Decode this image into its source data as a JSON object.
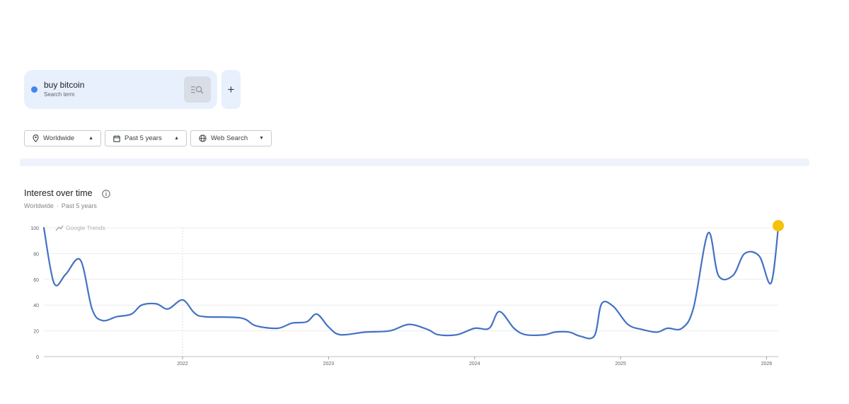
{
  "search_term": {
    "name": "buy bitcoin",
    "type_label": "Search term",
    "color": "#4285f4"
  },
  "add_button": {
    "label": "+"
  },
  "filters": {
    "location": "Worldwide",
    "time_range": "Past 5 years",
    "property": "Web Search"
  },
  "panel": {
    "title": "Interest over time",
    "sub_location": "Worldwide",
    "sub_separator": "·",
    "sub_range": "Past 5 years",
    "watermark": "Google Trends"
  },
  "chart_data": {
    "type": "line",
    "title": "Interest over time",
    "xlabel": "",
    "ylabel": "",
    "ylim": [
      0,
      100
    ],
    "yticks": [
      0,
      20,
      40,
      60,
      80,
      100
    ],
    "xlim": [
      2021.05,
      2026.08
    ],
    "xtick_labels": [
      "2022",
      "2023",
      "2024",
      "2025",
      "2026"
    ],
    "grid": true,
    "line_color": "#4472c4",
    "highlight_color": "#f4c20d",
    "series": [
      {
        "name": "buy bitcoin",
        "points": [
          [
            2021.05,
            100
          ],
          [
            2021.12,
            57
          ],
          [
            2021.2,
            64
          ],
          [
            2021.3,
            75
          ],
          [
            2021.38,
            37
          ],
          [
            2021.45,
            28
          ],
          [
            2021.55,
            31
          ],
          [
            2021.65,
            33
          ],
          [
            2021.72,
            40
          ],
          [
            2021.82,
            41
          ],
          [
            2021.9,
            37
          ],
          [
            2022.0,
            44
          ],
          [
            2022.08,
            34
          ],
          [
            2022.15,
            31
          ],
          [
            2022.4,
            30
          ],
          [
            2022.5,
            24
          ],
          [
            2022.65,
            22
          ],
          [
            2022.75,
            26
          ],
          [
            2022.85,
            27
          ],
          [
            2022.92,
            33
          ],
          [
            2023.0,
            23
          ],
          [
            2023.08,
            17
          ],
          [
            2023.25,
            19
          ],
          [
            2023.42,
            20
          ],
          [
            2023.55,
            25
          ],
          [
            2023.68,
            21
          ],
          [
            2023.75,
            17
          ],
          [
            2023.88,
            17
          ],
          [
            2024.0,
            22
          ],
          [
            2024.1,
            22
          ],
          [
            2024.17,
            35
          ],
          [
            2024.27,
            22
          ],
          [
            2024.35,
            17
          ],
          [
            2024.48,
            17
          ],
          [
            2024.55,
            19
          ],
          [
            2024.65,
            19
          ],
          [
            2024.72,
            16
          ],
          [
            2024.82,
            16
          ],
          [
            2024.87,
            41
          ],
          [
            2024.95,
            39
          ],
          [
            2025.05,
            25
          ],
          [
            2025.15,
            21
          ],
          [
            2025.25,
            19
          ],
          [
            2025.32,
            22
          ],
          [
            2025.42,
            22
          ],
          [
            2025.5,
            38
          ],
          [
            2025.6,
            96
          ],
          [
            2025.67,
            63
          ],
          [
            2025.77,
            63
          ],
          [
            2025.85,
            80
          ],
          [
            2025.95,
            78
          ],
          [
            2026.03,
            57
          ],
          [
            2026.08,
            100
          ]
        ]
      }
    ]
  }
}
